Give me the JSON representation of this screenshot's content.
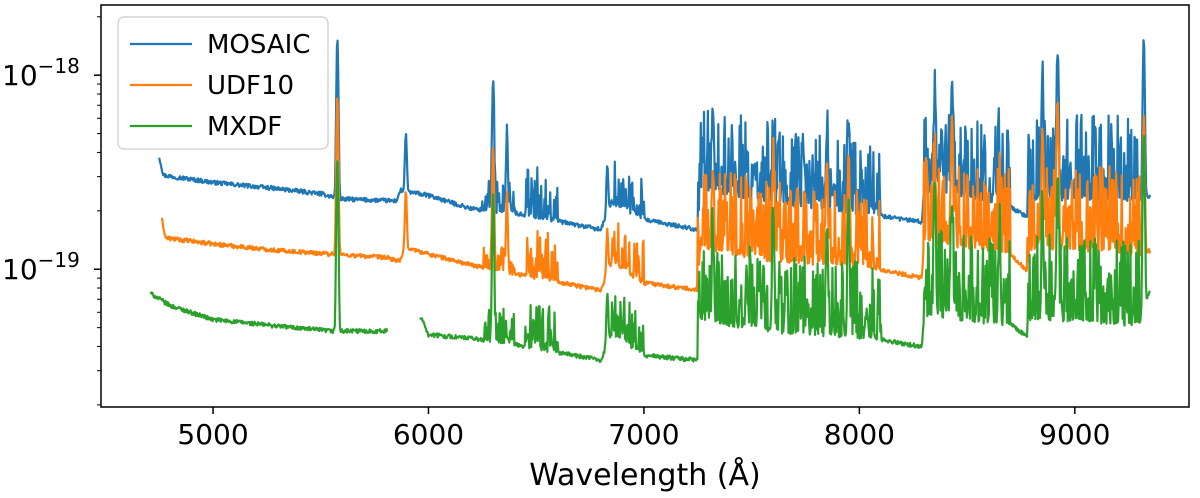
{
  "chart_data": {
    "type": "line",
    "title": "",
    "xlabel": "Wavelength (Å)",
    "ylabel": "",
    "yscale": "log",
    "xlim": [
      4480,
      9530
    ],
    "ylim": [
      1.95e-20,
      2.3e-18
    ],
    "xticks": [
      {
        "value": 5000,
        "label": "5000"
      },
      {
        "value": 6000,
        "label": "6000"
      },
      {
        "value": 7000,
        "label": "7000"
      },
      {
        "value": 8000,
        "label": "8000"
      },
      {
        "value": 9000,
        "label": "9000"
      }
    ],
    "yticks": [
      {
        "value": 1e-18,
        "base": "10",
        "exp": "−18"
      },
      {
        "value": 1e-19,
        "base": "10",
        "exp": "−19"
      }
    ],
    "legend": {
      "position": "top-left"
    },
    "series": [
      {
        "name": "MOSAIC",
        "color": "#1f77b4",
        "base": [
          [
            4750,
            3.8e-19
          ],
          [
            4770,
            3.05e-19
          ],
          [
            5000,
            2.8e-19
          ],
          [
            5300,
            2.6e-19
          ],
          [
            5500,
            2.45e-19
          ],
          [
            5600,
            2.3e-19
          ],
          [
            5850,
            2.25e-19
          ],
          [
            5870,
            2.55e-19
          ],
          [
            6000,
            2.4e-19
          ],
          [
            6200,
            2.05e-19
          ],
          [
            6400,
            1.95e-19
          ],
          [
            6800,
            1.6e-19
          ],
          [
            6850,
            2.2e-19
          ],
          [
            7000,
            1.8e-19
          ],
          [
            7250,
            1.6e-19
          ],
          [
            7260,
            2.6e-19
          ],
          [
            7600,
            2.2e-19
          ],
          [
            8000,
            1.95e-19
          ],
          [
            8290,
            1.75e-19
          ],
          [
            8300,
            2.6e-19
          ],
          [
            8700,
            2.1e-19
          ],
          [
            8780,
            1.85e-19
          ],
          [
            8800,
            2.3e-19
          ],
          [
            9300,
            2.3e-19
          ],
          [
            9350,
            2.4e-19
          ]
        ],
        "peaks": [
          [
            5577,
            1.55e-18
          ],
          [
            5895,
            5e-19
          ],
          [
            6300,
            9.5e-19
          ],
          [
            6364,
            4.8e-19
          ],
          [
            6830,
            3.4e-19
          ],
          [
            7320,
            6.5e-19
          ],
          [
            7600,
            5e-19
          ],
          [
            7850,
            5e-19
          ],
          [
            7950,
            5.2e-19
          ],
          [
            8350,
            6.8e-19
          ],
          [
            8430,
            9.5e-19
          ],
          [
            8650,
            3.9e-19
          ],
          [
            8850,
            9.5e-19
          ],
          [
            8920,
            1.1e-18
          ],
          [
            9320,
            1.55e-18
          ]
        ]
      },
      {
        "name": "UDF10",
        "color": "#ff7f0e",
        "base": [
          [
            4760,
            1.85e-19
          ],
          [
            4780,
            1.45e-19
          ],
          [
            5000,
            1.35e-19
          ],
          [
            5300,
            1.25e-19
          ],
          [
            5800,
            1.15e-19
          ],
          [
            5870,
            1.1e-19
          ],
          [
            5890,
            1.3e-19
          ],
          [
            6000,
            1.2e-19
          ],
          [
            6200,
            1.05e-19
          ],
          [
            6400,
            9.5e-20
          ],
          [
            6800,
            7.8e-20
          ],
          [
            6850,
            1.1e-19
          ],
          [
            7000,
            8.5e-20
          ],
          [
            7250,
            7.8e-20
          ],
          [
            7260,
            1.3e-19
          ],
          [
            7600,
            1.1e-19
          ],
          [
            8000,
            1.05e-19
          ],
          [
            8290,
            9e-20
          ],
          [
            8300,
            1.4e-19
          ],
          [
            8700,
            1.2e-19
          ],
          [
            8780,
            9.8e-20
          ],
          [
            8800,
            1.3e-19
          ],
          [
            9300,
            1.2e-19
          ],
          [
            9350,
            1.25e-19
          ]
        ],
        "peaks": [
          [
            5577,
            7.8e-19
          ],
          [
            5895,
            2.5e-19
          ],
          [
            6300,
            4.2e-19
          ],
          [
            6364,
            2.2e-19
          ],
          [
            6830,
            1.6e-19
          ],
          [
            7320,
            3.2e-19
          ],
          [
            7600,
            3.5e-19
          ],
          [
            7850,
            3.2e-19
          ],
          [
            7950,
            3.5e-19
          ],
          [
            8350,
            3.5e-19
          ],
          [
            8430,
            5.8e-19
          ],
          [
            8650,
            2.2e-19
          ],
          [
            8850,
            5e-19
          ],
          [
            8920,
            7e-19
          ],
          [
            9320,
            6.2e-19
          ]
        ]
      },
      {
        "name": "MXDF",
        "color": "#2ca02c",
        "base": [
          [
            4710,
            7.5e-20
          ],
          [
            4800,
            6.5e-20
          ],
          [
            5000,
            5.5e-20
          ],
          [
            5300,
            5.1e-20
          ],
          [
            5550,
            4.8e-20
          ],
          [
            5800,
            4.8e-20
          ],
          [
            5970,
            5.6e-20
          ],
          [
            6000,
            4.6e-20
          ],
          [
            6200,
            4.4e-20
          ],
          [
            6400,
            4.1e-20
          ],
          [
            6800,
            3.4e-20
          ],
          [
            6850,
            4.7e-20
          ],
          [
            7000,
            3.6e-20
          ],
          [
            7250,
            3.4e-20
          ],
          [
            7260,
            5.5e-20
          ],
          [
            7600,
            4.8e-20
          ],
          [
            8000,
            4.5e-20
          ],
          [
            8290,
            4e-20
          ],
          [
            8300,
            5.8e-20
          ],
          [
            8700,
            5.2e-20
          ],
          [
            8780,
            4.5e-20
          ],
          [
            8800,
            5.6e-20
          ],
          [
            9300,
            5.2e-20
          ],
          [
            9350,
            8e-20
          ]
        ],
        "gaps": [
          [
            5810,
            5960
          ]
        ],
        "peaks": [
          [
            5577,
            3.6e-19
          ],
          [
            6300,
            2.3e-19
          ],
          [
            6830,
            7.5e-20
          ],
          [
            7320,
            1.5e-19
          ],
          [
            7600,
            1.9e-19
          ],
          [
            7850,
            1.65e-19
          ],
          [
            7950,
            1.9e-19
          ],
          [
            8350,
            2.5e-19
          ],
          [
            8430,
            2.1e-19
          ],
          [
            8650,
            1.55e-19
          ],
          [
            8850,
            2e-19
          ],
          [
            8920,
            2.8e-19
          ],
          [
            9320,
            5e-19
          ]
        ]
      }
    ]
  }
}
